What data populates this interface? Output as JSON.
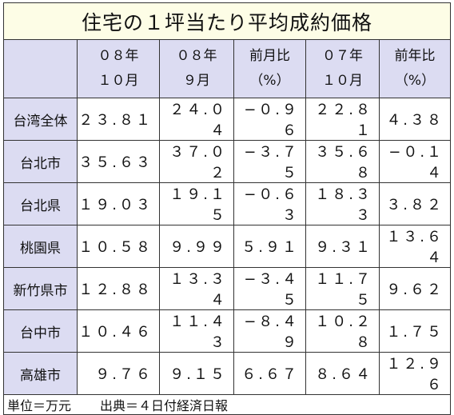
{
  "title": "住宅の１坪当たり平均成約価格",
  "table": {
    "header": [
      [
        "０８年",
        "１０月"
      ],
      [
        "０８年",
        "９月"
      ],
      [
        "前月比",
        "（%）"
      ],
      [
        "０７年",
        "１０月"
      ],
      [
        "前年比",
        "（%）"
      ]
    ],
    "rows": [
      [
        "台湾全体",
        "２３.８１",
        "２４.０４",
        "−０.９６",
        "２２.８１",
        "４.３８"
      ],
      [
        "台北市",
        "３５.６３",
        "３７.０２",
        "−３.７５",
        "３５.６８",
        "−０.１４"
      ],
      [
        "台北県",
        "１９.０３",
        "１９.１５",
        "−０.６３",
        "１８.３３",
        "３.８２"
      ],
      [
        "桃園県",
        "１０.５８",
        "９.９９",
        "５.９１",
        "９.３１",
        "１３.６４"
      ],
      [
        "新竹県市",
        "１２.８８",
        "１３.３４",
        "−３.４５",
        "１１.７５",
        "９.６２"
      ],
      [
        "台中市",
        "１０.４６",
        "１１.４３",
        "−８.４９",
        "１０.２８",
        "１.７５"
      ],
      [
        "高雄市",
        "９.７６",
        "９.１５",
        "６.６７",
        "８.６４",
        "１２.９６"
      ]
    ]
  },
  "footer": {
    "unit": "単位＝万元",
    "source": "出典＝４日付経済日報"
  }
}
